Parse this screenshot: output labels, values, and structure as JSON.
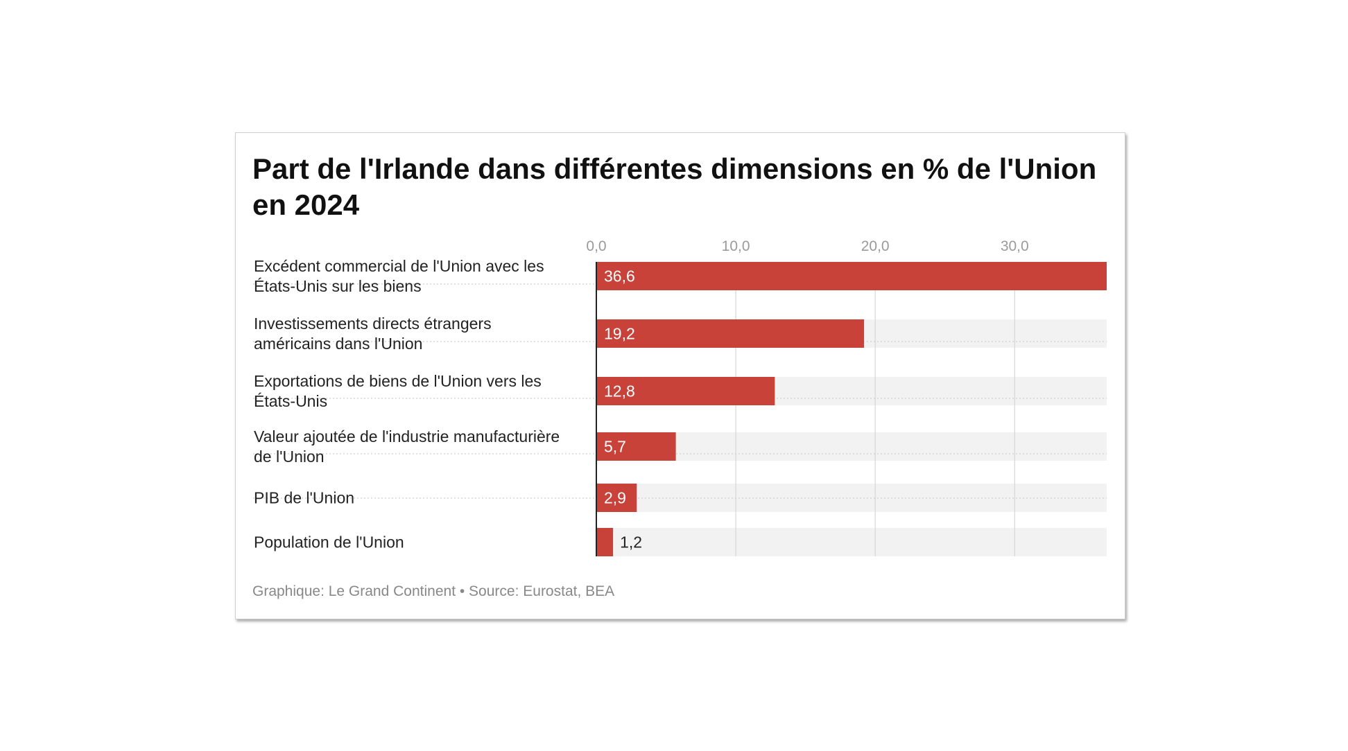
{
  "chart_data": {
    "type": "bar",
    "orientation": "horizontal",
    "title": "Part de l'Irlande dans différentes dimensions en % de l'Union en 2024",
    "categories": [
      [
        "Excédent commercial de l'Union avec les",
        "États-Unis sur les biens"
      ],
      [
        "Investissements directs étrangers",
        "américains dans l'Union"
      ],
      [
        "Exportations de biens de l'Union vers les",
        "États-Unis"
      ],
      [
        "Valeur ajoutée de l'industrie manufacturière",
        "de l'Union"
      ],
      [
        "PIB de l'Union"
      ],
      [
        "Population de l'Union"
      ]
    ],
    "values": [
      36.6,
      19.2,
      12.8,
      5.7,
      2.9,
      1.2
    ],
    "value_labels": [
      "36,6",
      "19,2",
      "12,8",
      "5,7",
      "2,9",
      "1,2"
    ],
    "xticks": [
      0,
      10,
      20,
      30
    ],
    "xtick_labels": [
      "0,0",
      "10,0",
      "20,0",
      "30,0"
    ],
    "xlim": [
      0,
      36.6
    ],
    "grid": true,
    "axis_position": "top",
    "bar_color": "#c8423a",
    "track_color": "#f2f2f2"
  },
  "footer": "Graphique: Le Grand Continent • Source: Eurostat, BEA"
}
